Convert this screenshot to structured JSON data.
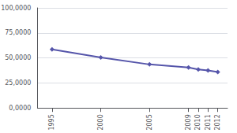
{
  "chart_data": {
    "type": "line",
    "x": [
      1995,
      2000,
      2005,
      2009,
      2010,
      2011,
      2012
    ],
    "values": [
      58.5,
      50.5,
      43.5,
      40.5,
      38.5,
      37.5,
      36.0
    ],
    "color": "#5555aa",
    "marker": "diamond",
    "xlim": [
      1993.5,
      2013
    ],
    "xticks": [
      1995,
      2000,
      2005,
      2009,
      2010,
      2011,
      2012
    ],
    "ylim": [
      0,
      100
    ],
    "yticks": [
      {
        "value": 0,
        "label": "0,0000"
      },
      {
        "value": 25,
        "label": "25,0000"
      },
      {
        "value": 50,
        "label": "50,0000"
      },
      {
        "value": 75,
        "label": "75,0000"
      },
      {
        "value": 100,
        "label": "100,0000"
      }
    ],
    "grid": "y"
  }
}
